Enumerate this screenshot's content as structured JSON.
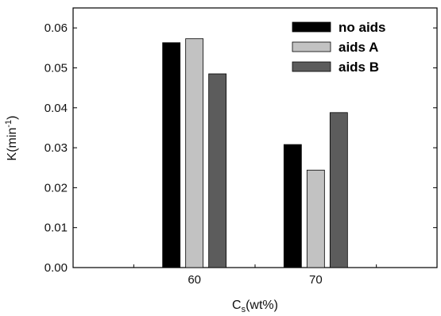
{
  "chart_data": {
    "type": "bar",
    "categories": [
      "60",
      "70"
    ],
    "series": [
      {
        "name": "no aids",
        "values": [
          0.0563,
          0.0308
        ],
        "color": "#000000"
      },
      {
        "name": "aids A",
        "values": [
          0.0573,
          0.0244
        ],
        "color": "#c2c2c2"
      },
      {
        "name": "aids B",
        "values": [
          0.0485,
          0.0388
        ],
        "color": "#5c5c5c"
      }
    ],
    "xlabel": {
      "main": "C",
      "sub": "s",
      "rest": "(wt%)"
    },
    "ylabel": {
      "main": "K(min",
      "sup": "-1",
      "rest": ")"
    },
    "ylim": [
      0,
      0.065
    ],
    "yticks": [
      "0.00",
      "0.01",
      "0.02",
      "0.03",
      "0.04",
      "0.05",
      "0.06"
    ],
    "xlim": [
      50,
      80
    ],
    "grid": false,
    "legend_position": "top-right"
  }
}
